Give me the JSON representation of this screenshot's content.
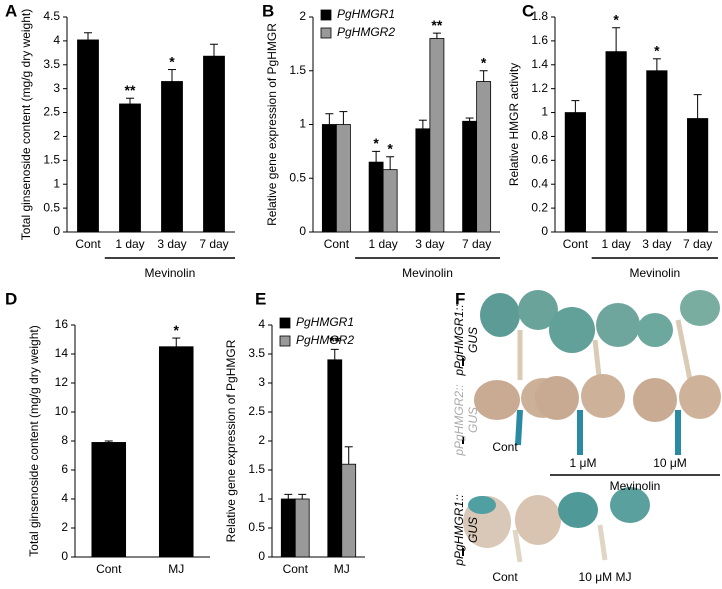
{
  "chart_data": [
    {
      "type": "bar",
      "panel": "A",
      "ylabel": "Total ginsenoside content (mg/g dry weight)",
      "categories": [
        "Cont",
        "1 day",
        "3 day",
        "7 day"
      ],
      "group_label": "Mevinolin",
      "values": [
        4.02,
        2.68,
        3.15,
        3.68
      ],
      "errors": [
        0.15,
        0.12,
        0.25,
        0.25
      ],
      "annotations": [
        null,
        "**",
        "*",
        null
      ],
      "color": "#000000",
      "ylim": [
        0,
        4.5
      ],
      "yticks": [
        0,
        0.5,
        1,
        1.5,
        2,
        2.5,
        3,
        3.5,
        4,
        4.5
      ]
    },
    {
      "type": "bar",
      "panel": "B",
      "ylabel": "Relative gene expression of PgHMGR",
      "categories": [
        "Cont",
        "1 day",
        "3 day",
        "7 day"
      ],
      "group_label": "Mevinolin",
      "series": [
        {
          "name": "PgHMGR1",
          "color": "#000000",
          "values": [
            1.0,
            0.65,
            0.96,
            1.03
          ],
          "errors": [
            0.1,
            0.1,
            0.08,
            0.03
          ],
          "annotations": [
            null,
            "*",
            null,
            null
          ]
        },
        {
          "name": "PgHMGR2",
          "color": "#999999",
          "values": [
            1.0,
            0.58,
            1.8,
            1.4
          ],
          "errors": [
            0.12,
            0.12,
            0.05,
            0.1
          ],
          "annotations": [
            null,
            "*",
            "**",
            "*"
          ]
        }
      ],
      "ylim": [
        0,
        2
      ],
      "yticks": [
        0,
        0.5,
        1,
        1.5,
        2
      ]
    },
    {
      "type": "bar",
      "panel": "C",
      "ylabel": "Relative HMGR activity",
      "categories": [
        "Cont",
        "1 day",
        "3 day",
        "7 day"
      ],
      "group_label": "Mevinolin",
      "values": [
        1.0,
        1.51,
        1.35,
        0.95
      ],
      "errors": [
        0.1,
        0.2,
        0.1,
        0.2
      ],
      "annotations": [
        null,
        "*",
        "*",
        null
      ],
      "color": "#000000",
      "ylim": [
        0,
        1.8
      ],
      "yticks": [
        0,
        0.2,
        0.4,
        0.6,
        0.8,
        1,
        1.2,
        1.4,
        1.6,
        1.8
      ]
    },
    {
      "type": "bar",
      "panel": "D",
      "ylabel": "Total ginsenoside content (mg/g dry weight)",
      "categories": [
        "Cont",
        "MJ"
      ],
      "values": [
        7.9,
        14.5
      ],
      "errors": [
        0.1,
        0.6
      ],
      "annotations": [
        null,
        "*"
      ],
      "color": "#000000",
      "ylim": [
        0,
        16
      ],
      "yticks": [
        0,
        2,
        4,
        6,
        8,
        10,
        12,
        14,
        16
      ]
    },
    {
      "type": "bar",
      "panel": "E",
      "ylabel": "Relative gene expression of PgHMGR",
      "categories": [
        "Cont",
        "MJ"
      ],
      "series": [
        {
          "name": "PgHMGR1",
          "color": "#000000",
          "values": [
            1.0,
            3.4
          ],
          "errors": [
            0.08,
            0.18
          ],
          "annotations": [
            null,
            "**"
          ]
        },
        {
          "name": "PgHMGR2",
          "color": "#999999",
          "values": [
            1.0,
            1.6
          ],
          "errors": [
            0.08,
            0.3
          ],
          "annotations": [
            null,
            null
          ]
        }
      ],
      "ylim": [
        0,
        4
      ],
      "yticks": [
        0,
        0.5,
        1,
        1.5,
        2,
        2.5,
        3,
        3.5,
        4
      ]
    }
  ],
  "panel_f": {
    "panel": "F",
    "row_labels": [
      [
        "pPgHMGR1::",
        "GUS"
      ],
      [
        "pPgHMGR2::",
        "GUS"
      ],
      [
        "pPgHMGR1::",
        "GUS"
      ]
    ],
    "labels": [
      "Cont",
      "1 μM",
      "10 μM",
      "Mevinolin",
      "Cont",
      "10 μM MJ"
    ]
  }
}
